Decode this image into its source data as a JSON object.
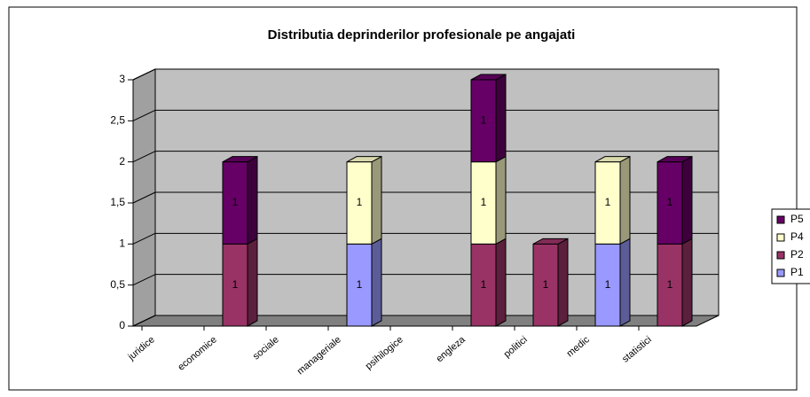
{
  "chart_data": {
    "type": "bar3d_stacked",
    "title": "Distributia deprinderilor profesionale pe angajati",
    "categories": [
      "juridice",
      "economice",
      "sociale",
      "manageriale",
      "psihilogice",
      "engleza",
      "politici",
      "medic",
      "statistici"
    ],
    "series": [
      {
        "name": "P1",
        "color": "#9999ff",
        "values": [
          null,
          null,
          null,
          1,
          null,
          null,
          null,
          1,
          null
        ]
      },
      {
        "name": "P2",
        "color": "#993366",
        "values": [
          null,
          1,
          null,
          null,
          null,
          1,
          1,
          null,
          1
        ]
      },
      {
        "name": "P4",
        "color": "#ffffcc",
        "values": [
          null,
          null,
          null,
          1,
          null,
          1,
          null,
          1,
          null
        ]
      },
      {
        "name": "P5",
        "color": "#660066",
        "values": [
          null,
          1,
          null,
          null,
          null,
          1,
          null,
          null,
          1
        ]
      }
    ],
    "ylim": [
      0,
      3
    ],
    "yticks": [
      0,
      {
        "value": 0.5,
        "label": "0,5"
      },
      1,
      {
        "value": 1.5,
        "label": "1,5"
      },
      2,
      {
        "value": 2.5,
        "label": "2,5"
      },
      3
    ],
    "grid": true,
    "legend": "right"
  }
}
